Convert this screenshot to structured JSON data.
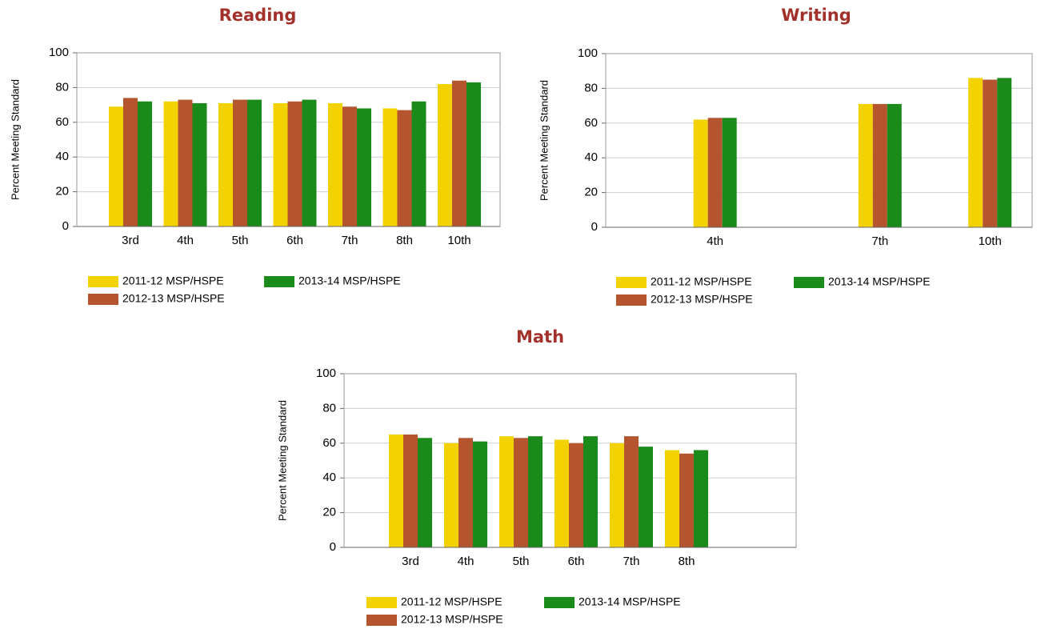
{
  "chart_data": [
    {
      "type": "bar",
      "title": "Reading",
      "ylabel": "Percent Meeting Standard",
      "categories": [
        "3rd",
        "4th",
        "5th",
        "6th",
        "7th",
        "8th",
        "10th"
      ],
      "series": [
        {
          "name": "2011-12 MSP/HSPE",
          "color": "#f2d200",
          "values": [
            69,
            72,
            71,
            71,
            71,
            68,
            82
          ]
        },
        {
          "name": "2012-13 MSP/HSPE",
          "color": "#b5552f",
          "values": [
            74,
            73,
            73,
            72,
            69,
            67,
            84
          ]
        },
        {
          "name": "2013-14 MSP/HSPE",
          "color": "#1a8a1a",
          "values": [
            72,
            71,
            73,
            73,
            68,
            72,
            83
          ]
        }
      ],
      "ylim": [
        0,
        100
      ],
      "yticks": [
        0,
        20,
        40,
        60,
        80,
        100
      ],
      "grid": true
    },
    {
      "type": "bar",
      "title": "Writing",
      "ylabel": "Percent Meeting Standard",
      "categories": [
        null,
        "4th",
        null,
        null,
        "7th",
        null,
        "10th"
      ],
      "series": [
        {
          "name": "2011-12 MSP/HSPE",
          "color": "#f2d200",
          "values": [
            null,
            62,
            null,
            null,
            71,
            null,
            86
          ]
        },
        {
          "name": "2012-13 MSP/HSPE",
          "color": "#b5552f",
          "values": [
            null,
            63,
            null,
            null,
            71,
            null,
            85
          ]
        },
        {
          "name": "2013-14 MSP/HSPE",
          "color": "#1a8a1a",
          "values": [
            null,
            63,
            null,
            null,
            71,
            null,
            86
          ]
        }
      ],
      "ylim": [
        0,
        100
      ],
      "yticks": [
        0,
        20,
        40,
        60,
        80,
        100
      ],
      "grid": true
    },
    {
      "type": "bar",
      "title": "Math",
      "ylabel": "Percent Meeting Standard",
      "categories": [
        "3rd",
        "4th",
        "5th",
        "6th",
        "7th",
        "8th"
      ],
      "series": [
        {
          "name": "2011-12 MSP/HSPE",
          "color": "#f2d200",
          "values": [
            65,
            60,
            64,
            62,
            60,
            56
          ]
        },
        {
          "name": "2012-13 MSP/HSPE",
          "color": "#b5552f",
          "values": [
            65,
            63,
            63,
            60,
            64,
            54
          ]
        },
        {
          "name": "2013-14 MSP/HSPE",
          "color": "#1a8a1a",
          "values": [
            63,
            61,
            64,
            64,
            58,
            56
          ]
        }
      ],
      "ylim": [
        0,
        100
      ],
      "yticks": [
        0,
        20,
        40,
        60,
        80,
        100
      ],
      "grid": true
    }
  ]
}
